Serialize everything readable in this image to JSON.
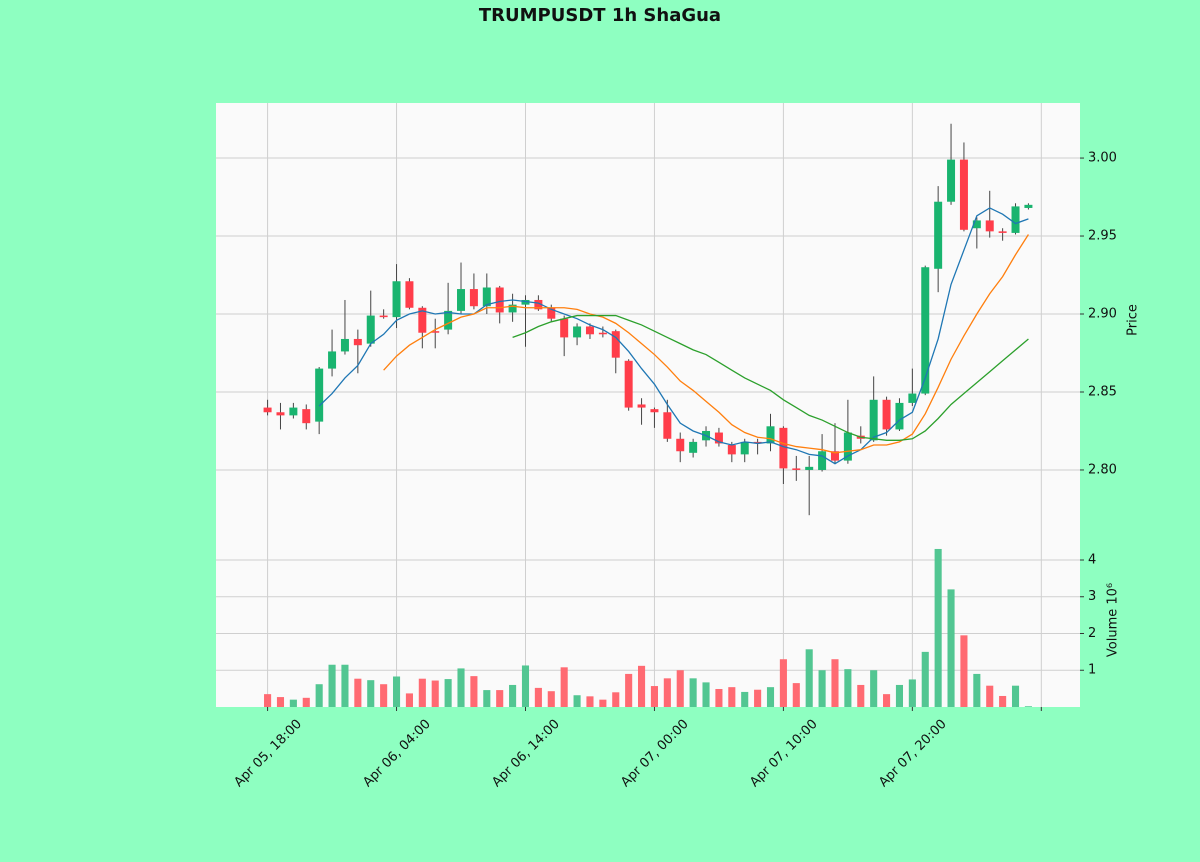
{
  "chart_data": {
    "type": "candlestick",
    "title": "TRUMPUSDT 1h ShaGua",
    "ylabel": "Price",
    "y2label": "Volume  10⁶",
    "categories": [
      "Apr 05, 18:00",
      null,
      null,
      null,
      null,
      null,
      null,
      null,
      null,
      null,
      "Apr 06, 04:00",
      null,
      null,
      null,
      null,
      null,
      null,
      null,
      null,
      null,
      "Apr 06, 14:00",
      null,
      null,
      null,
      null,
      null,
      null,
      null,
      null,
      null,
      "Apr 07, 00:00",
      null,
      null,
      null,
      null,
      null,
      null,
      null,
      null,
      null,
      "Apr 07, 10:00",
      null,
      null,
      null,
      null,
      null,
      null,
      null,
      null,
      null,
      "Apr 07, 20:00",
      null,
      null,
      null,
      null,
      null,
      null,
      null,
      null,
      null
    ],
    "open": [
      2.84,
      2.837,
      2.835,
      2.839,
      2.831,
      2.865,
      2.876,
      2.884,
      2.881,
      2.899,
      2.898,
      2.921,
      2.904,
      2.889,
      2.89,
      2.902,
      2.916,
      2.905,
      2.917,
      2.901,
      2.906,
      2.909,
      2.904,
      2.897,
      2.885,
      2.892,
      2.888,
      2.889,
      2.87,
      2.842,
      2.839,
      2.837,
      2.82,
      2.811,
      2.819,
      2.824,
      2.816,
      2.81,
      2.818,
      2.817,
      2.827,
      2.801,
      2.8,
      2.8,
      2.812,
      2.806,
      2.822,
      2.819,
      2.845,
      2.826,
      2.843,
      2.849,
      2.929,
      2.972,
      2.999,
      2.955,
      2.96,
      2.953,
      2.952,
      2.968
    ],
    "high": [
      2.845,
      2.843,
      2.843,
      2.842,
      2.866,
      2.89,
      2.909,
      2.89,
      2.915,
      2.903,
      2.932,
      2.923,
      2.905,
      2.897,
      2.92,
      2.933,
      2.926,
      2.926,
      2.918,
      2.913,
      2.912,
      2.912,
      2.906,
      2.899,
      2.894,
      2.894,
      2.892,
      2.89,
      2.871,
      2.846,
      2.84,
      2.845,
      2.824,
      2.82,
      2.828,
      2.827,
      2.818,
      2.82,
      2.82,
      2.836,
      2.828,
      2.809,
      2.809,
      2.823,
      2.83,
      2.845,
      2.828,
      2.86,
      2.847,
      2.846,
      2.865,
      2.931,
      2.982,
      3.022,
      3.01,
      2.962,
      2.979,
      2.955,
      2.971,
      2.971
    ],
    "low": [
      2.835,
      2.826,
      2.833,
      2.826,
      2.823,
      2.86,
      2.874,
      2.862,
      2.879,
      2.897,
      2.891,
      2.903,
      2.878,
      2.878,
      2.887,
      2.9,
      2.903,
      2.9,
      2.894,
      2.895,
      2.879,
      2.902,
      2.895,
      2.873,
      2.88,
      2.884,
      2.885,
      2.862,
      2.838,
      2.829,
      2.827,
      2.818,
      2.805,
      2.808,
      2.815,
      2.815,
      2.805,
      2.805,
      2.81,
      2.812,
      2.791,
      2.793,
      2.771,
      2.799,
      2.804,
      2.804,
      2.817,
      2.818,
      2.822,
      2.825,
      2.841,
      2.848,
      2.914,
      2.97,
      2.953,
      2.942,
      2.949,
      2.947,
      2.951,
      2.967
    ],
    "close": [
      2.837,
      2.835,
      2.84,
      2.83,
      2.865,
      2.876,
      2.884,
      2.88,
      2.899,
      2.898,
      2.921,
      2.904,
      2.888,
      2.888,
      2.902,
      2.916,
      2.905,
      2.917,
      2.901,
      2.906,
      2.909,
      2.903,
      2.897,
      2.885,
      2.892,
      2.887,
      2.887,
      2.872,
      2.84,
      2.84,
      2.837,
      2.82,
      2.812,
      2.818,
      2.825,
      2.817,
      2.81,
      2.818,
      2.817,
      2.828,
      2.801,
      2.8,
      2.802,
      2.812,
      2.806,
      2.824,
      2.82,
      2.845,
      2.826,
      2.843,
      2.849,
      2.93,
      2.972,
      2.999,
      2.954,
      2.96,
      2.953,
      2.952,
      2.969,
      2.97
    ],
    "volume": [
      0.35,
      0.27,
      0.2,
      0.25,
      0.62,
      1.15,
      1.15,
      0.77,
      0.73,
      0.62,
      0.83,
      0.37,
      0.77,
      0.72,
      0.76,
      1.05,
      0.84,
      0.46,
      0.46,
      0.6,
      1.13,
      0.52,
      0.43,
      1.08,
      0.32,
      0.29,
      0.2,
      0.4,
      0.9,
      1.12,
      0.57,
      0.78,
      1.0,
      0.78,
      0.67,
      0.49,
      0.54,
      0.41,
      0.47,
      0.54,
      1.3,
      0.65,
      1.57,
      1.0,
      1.3,
      1.03,
      0.6,
      1.0,
      0.35,
      0.6,
      0.75,
      1.5,
      4.3,
      3.2,
      1.95,
      0.9,
      0.58,
      0.3,
      0.58,
      0.02
    ],
    "up_color": "#19b46f",
    "down_color": "#ff3d4a",
    "up_volume_color": "#52c692",
    "down_volume_color": "#ff6a72",
    "wick_color": "#444444",
    "ma_series": [
      {
        "color": "#1f77b4",
        "values": [
          null,
          null,
          null,
          null,
          2.841,
          2.849,
          2.859,
          2.867,
          2.881,
          2.887,
          2.896,
          2.9,
          2.902,
          2.9,
          2.901,
          2.9,
          2.9,
          2.906,
          2.908,
          2.909,
          2.908,
          2.907,
          2.903,
          2.9,
          2.897,
          2.893,
          2.89,
          2.885,
          2.876,
          2.865,
          2.855,
          2.842,
          2.83,
          2.825,
          2.822,
          2.818,
          2.816,
          2.818,
          2.817,
          2.818,
          2.815,
          2.813,
          2.81,
          2.809,
          2.804,
          2.809,
          2.813,
          2.821,
          2.824,
          2.832,
          2.837,
          2.859,
          2.884,
          2.919,
          2.941,
          2.963,
          2.968,
          2.964,
          2.958,
          2.961
        ]
      },
      {
        "color": "#ff7f0e",
        "values": [
          null,
          null,
          null,
          null,
          null,
          null,
          null,
          null,
          null,
          2.864,
          2.873,
          2.88,
          2.885,
          2.89,
          2.894,
          2.898,
          2.9,
          2.904,
          2.904,
          2.905,
          2.904,
          2.904,
          2.904,
          2.904,
          2.903,
          2.9,
          2.898,
          2.894,
          2.888,
          2.881,
          2.874,
          2.866,
          2.857,
          2.851,
          2.844,
          2.837,
          2.829,
          2.824,
          2.821,
          2.82,
          2.817,
          2.815,
          2.814,
          2.813,
          2.811,
          2.812,
          2.813,
          2.816,
          2.816,
          2.818,
          2.823,
          2.836,
          2.853,
          2.871,
          2.886,
          2.9,
          2.913,
          2.924,
          2.938,
          2.951
        ]
      },
      {
        "color": "#2ca02c",
        "values": [
          null,
          null,
          null,
          null,
          null,
          null,
          null,
          null,
          null,
          null,
          null,
          null,
          null,
          null,
          null,
          null,
          null,
          null,
          null,
          2.885,
          2.888,
          2.892,
          2.895,
          2.897,
          2.899,
          2.899,
          2.899,
          2.899,
          2.896,
          2.893,
          2.889,
          2.885,
          2.881,
          2.877,
          2.874,
          2.869,
          2.864,
          2.859,
          2.855,
          2.851,
          2.845,
          2.84,
          2.835,
          2.832,
          2.828,
          2.824,
          2.821,
          2.82,
          2.819,
          2.819,
          2.82,
          2.825,
          2.833,
          2.842,
          2.849,
          2.856,
          2.863,
          2.87,
          2.877,
          2.884
        ]
      }
    ],
    "xlim": [
      -4,
      63
    ],
    "xticks": [
      0,
      10,
      20,
      30,
      40,
      50,
      60
    ],
    "ylim": [
      2.7583,
      3.0353
    ],
    "yticks": [
      {
        "value": 2.8,
        "label": "2.80"
      },
      {
        "value": 2.85,
        "label": "2.85"
      },
      {
        "value": 2.9,
        "label": "2.90"
      },
      {
        "value": 2.95,
        "label": "2.95"
      },
      {
        "value": 3.0,
        "label": "3.00"
      }
    ],
    "y2lim": [
      0,
      4.68
    ],
    "y2ticks": [
      1,
      2,
      3,
      4
    ],
    "grid": true
  }
}
